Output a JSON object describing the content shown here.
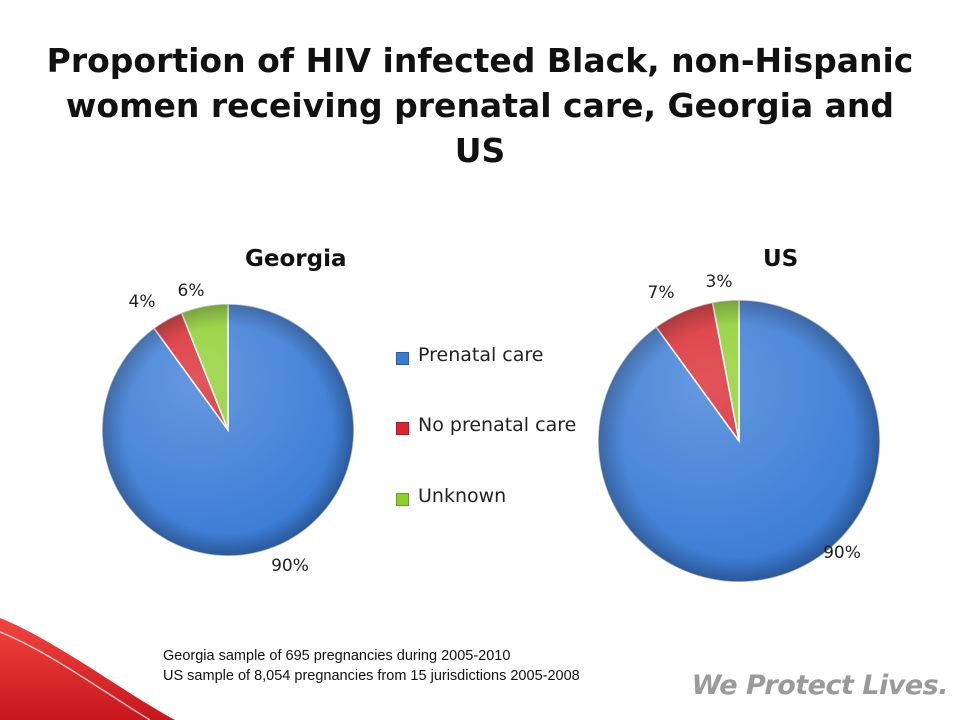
{
  "slide": {
    "title": "Proportion of HIV infected Black, non-Hispanic women receiving prenatal care, Georgia and US",
    "footnotes": [
      "Georgia sample of 695 pregnancies during 2005-2010",
      "US sample of 8,054 pregnancies from 15 jurisdictions 2005-2008"
    ],
    "tagline": "We Protect Lives.",
    "colors": {
      "band": "#e8222b",
      "tagline": "#9a9a9a"
    }
  },
  "legend": {
    "items": [
      {
        "label": "Prenatal care",
        "color": "#3a7bd5"
      },
      {
        "label": "No prenatal care",
        "color": "#d9262d"
      },
      {
        "label": "Unknown",
        "color": "#8ccf2e"
      }
    ]
  },
  "chart_data": [
    {
      "type": "pie",
      "title": "Georgia",
      "categories": [
        "Prenatal care",
        "No prenatal care",
        "Unknown"
      ],
      "values": [
        90,
        4,
        6
      ],
      "labels": [
        "90%",
        "4%",
        "6%"
      ],
      "colors": [
        "#3a7bd5",
        "#d9262d",
        "#8ccf2e"
      ],
      "legend": "center"
    },
    {
      "type": "pie",
      "title": "US",
      "categories": [
        "Prenatal care",
        "No prenatal care",
        "Unknown"
      ],
      "values": [
        90,
        7,
        3
      ],
      "labels": [
        "90%",
        "7%",
        "3%"
      ],
      "colors": [
        "#3a7bd5",
        "#d9262d",
        "#8ccf2e"
      ],
      "legend": "center"
    }
  ]
}
